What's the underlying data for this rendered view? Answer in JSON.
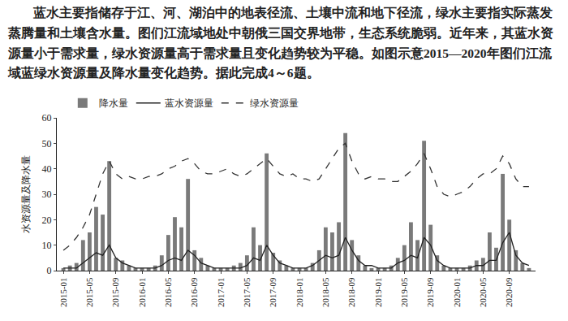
{
  "chart_data": {
    "type": "bar",
    "caption": "蓝水主要指储存于江、河、湖泊中的地表径流、土壤中流和地下径流，绿水主要指实际蒸发蒸腾量和土壤含水量。图们江流域地处中朝俄三国交界地带，生态系统脆弱。近年来，其蓝水资源量小于需求量，绿水资源量高于需求量且变化趋势较为平稳。如图示意2015—2020年图们江流域蓝绿水资源量及降水量变化趋势。据此完成4～6题。",
    "y_label": "水资源量及降水量",
    "categories": [
      "2015-01",
      null,
      null,
      null,
      "2015-05",
      null,
      null,
      null,
      "2015-09",
      null,
      null,
      null,
      "2016-01",
      null,
      null,
      null,
      "2016-05",
      null,
      null,
      null,
      "2016-09",
      null,
      null,
      null,
      "2017-01",
      null,
      null,
      null,
      "2017-05",
      null,
      null,
      null,
      "2017-09",
      null,
      null,
      null,
      "2018-01",
      null,
      null,
      null,
      "2018-05",
      null,
      null,
      null,
      "2018-09",
      null,
      null,
      null,
      "2019-01",
      null,
      null,
      null,
      "2019-05",
      null,
      null,
      null,
      "2019-09",
      null,
      null,
      null,
      "2020-01",
      null,
      null,
      null,
      "2020-05",
      null,
      null,
      null,
      "2020-09",
      null,
      null,
      null
    ],
    "series": [
      {
        "name": "降水量",
        "type": "bar",
        "color": "#7a7a7a",
        "values": [
          1,
          2,
          3,
          12,
          15,
          25,
          22,
          43,
          5,
          4,
          2,
          1,
          1,
          1,
          2,
          6,
          14,
          21,
          17,
          36,
          8,
          5,
          2,
          1,
          1,
          1,
          2,
          3,
          6,
          17,
          10,
          46,
          7,
          4,
          2,
          1,
          1,
          1,
          3,
          8,
          17,
          15,
          19,
          54,
          12,
          6,
          2,
          1,
          1,
          1,
          2,
          5,
          10,
          19,
          12,
          51,
          18,
          6,
          2,
          1,
          1,
          1,
          2,
          4,
          5,
          15,
          9,
          38,
          20,
          8,
          3,
          1
        ]
      },
      {
        "name": "蓝水资源量",
        "type": "line",
        "line_style": "solid",
        "color": "#222222",
        "values": [
          1,
          1,
          1,
          3,
          5,
          7,
          6,
          10,
          5,
          3,
          2,
          1,
          1,
          1,
          1,
          2,
          4,
          5,
          4,
          8,
          6,
          3,
          2,
          1,
          1,
          1,
          1,
          1,
          2,
          5,
          4,
          10,
          6,
          3,
          2,
          1,
          1,
          1,
          2,
          4,
          6,
          5,
          6,
          13,
          8,
          4,
          2,
          2,
          1,
          1,
          1,
          3,
          4,
          6,
          5,
          13,
          10,
          4,
          2,
          1,
          1,
          1,
          1,
          2,
          2,
          4,
          4,
          11,
          15,
          6,
          3,
          2
        ]
      },
      {
        "name": "绿水资源量",
        "type": "line",
        "line_style": "dashed",
        "color": "#333333",
        "values": [
          8,
          10,
          13,
          17,
          22,
          30,
          38,
          43,
          38,
          36,
          37,
          36,
          36,
          37,
          37,
          38,
          40,
          41,
          43,
          44,
          42,
          39,
          38,
          38,
          39,
          40,
          38,
          37,
          38,
          40,
          42,
          44,
          41,
          38,
          37,
          38,
          36,
          36,
          35,
          36,
          40,
          44,
          48,
          50,
          43,
          38,
          36,
          37,
          36,
          36,
          35,
          35,
          37,
          39,
          42,
          46,
          40,
          33,
          30,
          29,
          30,
          31,
          33,
          36,
          38,
          38,
          40,
          45,
          42,
          36,
          33,
          33
        ]
      }
    ],
    "ylim": [
      0,
      60
    ],
    "yticks": [
      0,
      10,
      20,
      30,
      40,
      50,
      60
    ],
    "grid": false,
    "legend": "top"
  }
}
